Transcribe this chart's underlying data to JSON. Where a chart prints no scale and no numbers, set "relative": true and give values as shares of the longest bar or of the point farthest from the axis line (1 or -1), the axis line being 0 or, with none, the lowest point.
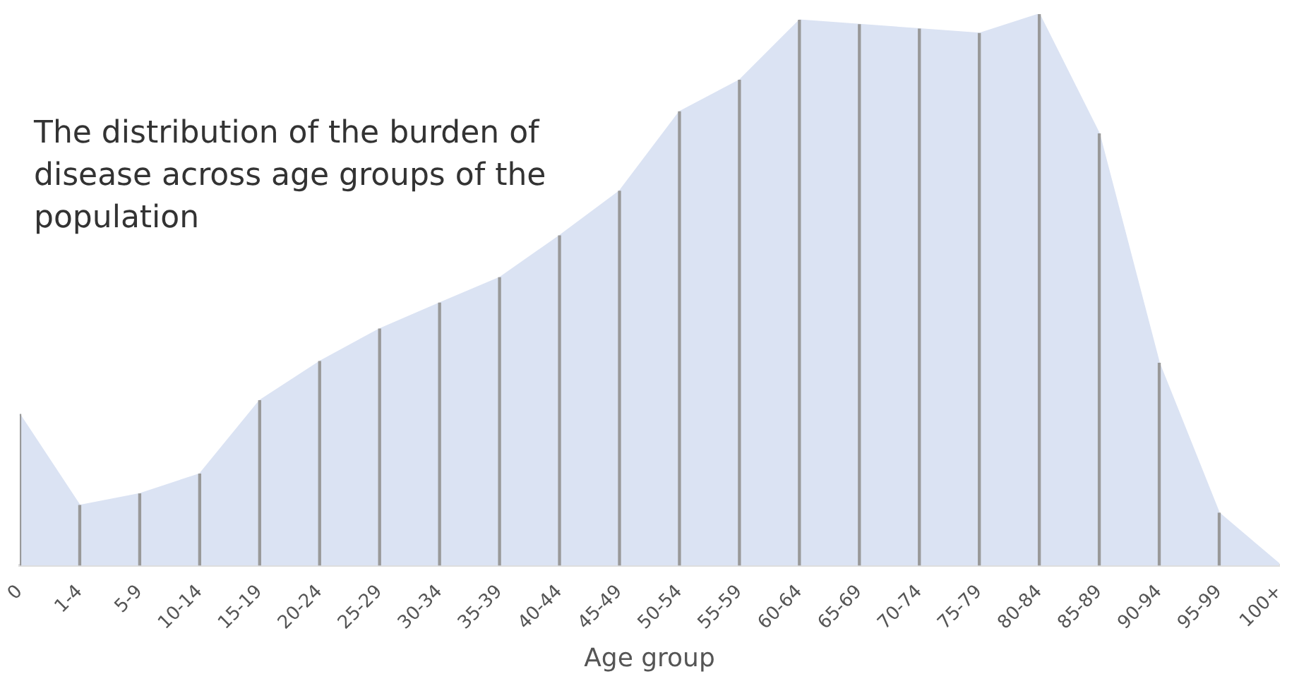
{
  "chart_data": {
    "type": "area",
    "title": "The distribution of the burden of disease across age groups of the population",
    "xlabel": "Age group",
    "relative": true,
    "categories": [
      "0",
      "1-4",
      "5-9",
      "10-14",
      "15-19",
      "20-24",
      "25-29",
      "30-34",
      "35-39",
      "40-44",
      "45-49",
      "50-54",
      "55-59",
      "60-64",
      "65-69",
      "70-74",
      "75-79",
      "80-84",
      "85-89",
      "90-94",
      "95-99",
      "100+"
    ],
    "series": [
      {
        "color": "#dbe3f3",
        "values": [
          0.274,
          0.109,
          0.13,
          0.166,
          0.299,
          0.37,
          0.429,
          0.476,
          0.522,
          0.598,
          0.679,
          0.823,
          0.88,
          0.989,
          0.981,
          0.973,
          0.965,
          1,
          0.783,
          0.367,
          0.095,
          0.003
        ]
      },
      {
        "type": "bar",
        "color": "#999999",
        "values": [
          0.274,
          0.109,
          0.13,
          0.166,
          0.299,
          0.37,
          0.429,
          0.476,
          0.522,
          0.598,
          0.679,
          0.823,
          0.88,
          0.989,
          0.981,
          0.973,
          0.965,
          1,
          0.783,
          0.367,
          0.095,
          null
        ]
      }
    ],
    "legend": false
  }
}
